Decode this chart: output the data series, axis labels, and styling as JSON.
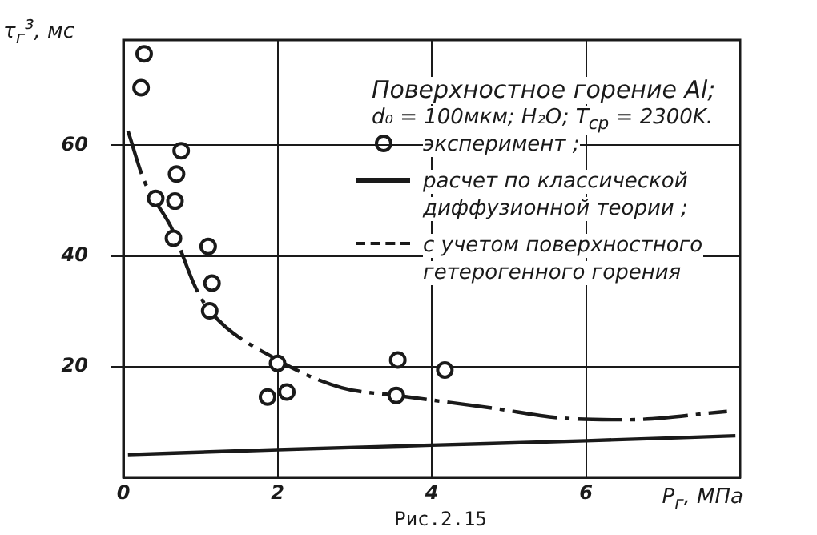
{
  "chart_data": {
    "type": "scatter",
    "title": "Поверхностное горение Al;",
    "subtitle": "d₀ = 100мкм; H₂O; T$_{ср}$ = 2300K.",
    "xlabel": "P$_{г}$, МПа",
    "ylabel": "τ$_{г}$$^{з}$, мс",
    "annotations": [
      "Рис.2.15"
    ],
    "xlim": [
      0,
      8
    ],
    "xticks": [
      0,
      2,
      4,
      6
    ],
    "ylim": [
      0,
      79
    ],
    "yticks": [
      20,
      40,
      60
    ],
    "grid": true,
    "legend": "top right",
    "series": [
      {
        "name": "эксперимент ;",
        "marker": "circle",
        "color": "#1a1a1a",
        "x": [
          0.27,
          0.23,
          0.75,
          0.69,
          0.42,
          0.67,
          0.65,
          1.1,
          1.15,
          1.12,
          2.0,
          1.87,
          2.12,
          3.56,
          3.54,
          4.17
        ],
        "values": [
          76.5,
          70.4,
          59,
          54.8,
          50.4,
          49.9,
          43.2,
          41.7,
          35.1,
          30.1,
          20.6,
          14.5,
          15.4,
          21.2,
          14.8,
          19.4
        ]
      },
      {
        "name": "расчет по классической диффузионной теории ;",
        "type": "line",
        "marker": "none",
        "line_style": "solid",
        "color": "#1a1a1a",
        "x": [
          0.06,
          2,
          4,
          6,
          7.94
        ],
        "values": [
          4.1,
          5,
          5.8,
          6.6,
          7.5
        ]
      },
      {
        "name": "с учетом поверхностного гетерогенного горения",
        "type": "line",
        "marker": "none",
        "line_style": "dashed",
        "color": "#1a1a1a",
        "x": [
          0.06,
          0.27,
          0.63,
          0.94,
          1.12,
          2.0,
          2.83,
          3.54,
          4.79,
          5.69,
          6.52,
          7.83
        ],
        "values": [
          62.6,
          53.6,
          44.9,
          34.2,
          30.1,
          21.2,
          16.2,
          14.8,
          12.5,
          10.7,
          10.4,
          11.9
        ]
      }
    ]
  }
}
